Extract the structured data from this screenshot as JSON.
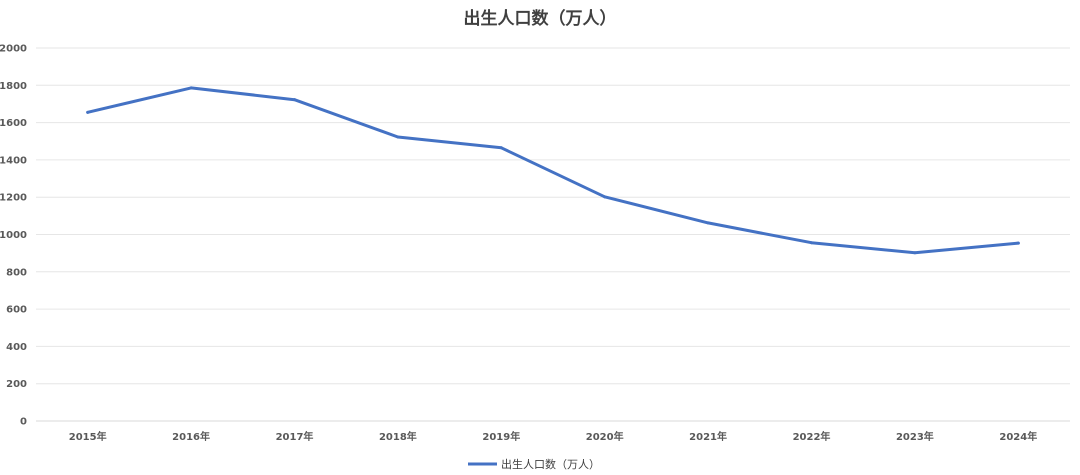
{
  "chart_data": {
    "type": "line",
    "title": "出生人口数（万人）",
    "xlabel": "",
    "ylabel": "",
    "categories": [
      "2015年",
      "2016年",
      "2017年",
      "2018年",
      "2019年",
      "2020年",
      "2021年",
      "2022年",
      "2023年",
      "2024年"
    ],
    "series": [
      {
        "name": "出生人口数（万人）",
        "values": [
          1655,
          1786,
          1723,
          1523,
          1465,
          1202,
          1062,
          956,
          902,
          954
        ],
        "color": "#4472c4"
      }
    ],
    "ylim": [
      0,
      2000
    ],
    "yticks": [
      0,
      200,
      400,
      600,
      800,
      1000,
      1200,
      1400,
      1600,
      1800,
      2000
    ],
    "grid": true,
    "legend": "bottom-center"
  }
}
